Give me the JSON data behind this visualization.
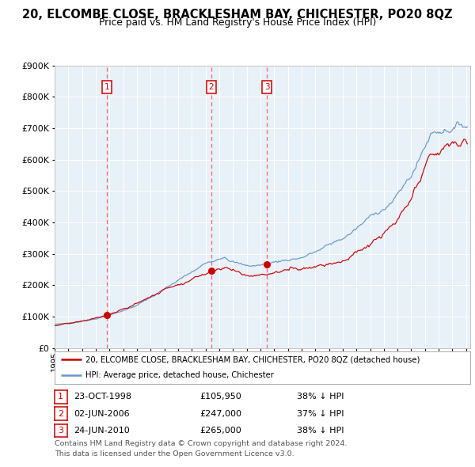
{
  "title": "20, ELCOMBE CLOSE, BRACKLESHAM BAY, CHICHESTER, PO20 8QZ",
  "subtitle": "Price paid vs. HM Land Registry's House Price Index (HPI)",
  "legend_line1": "20, ELCOMBE CLOSE, BRACKLESHAM BAY, CHICHESTER, PO20 8QZ (detached house)",
  "legend_line2": "HPI: Average price, detached house, Chichester",
  "footer_line1": "Contains HM Land Registry data © Crown copyright and database right 2024.",
  "footer_line2": "This data is licensed under the Open Government Licence v3.0.",
  "transactions": [
    {
      "num": 1,
      "date": "23-OCT-1998",
      "price": 105950,
      "pct": "38%",
      "dir": "↓"
    },
    {
      "num": 2,
      "date": "02-JUN-2006",
      "price": 247000,
      "pct": "37%",
      "dir": "↓"
    },
    {
      "num": 3,
      "date": "24-JUN-2010",
      "price": 265000,
      "pct": "38%",
      "dir": "↓"
    }
  ],
  "transaction_dates_decimal": [
    1998.81,
    2006.42,
    2010.48
  ],
  "transaction_prices": [
    105950,
    247000,
    265000
  ],
  "ylim": [
    0,
    900000
  ],
  "xlim_start": 1995.0,
  "xlim_end": 2025.3,
  "red_color": "#cc0000",
  "blue_color": "#6699cc",
  "plot_bg": "#e8f0f8",
  "grid_color": "#ffffff",
  "vline_color": "#ff5555",
  "box_color": "#cc0000",
  "title_fontsize": 10.5,
  "subtitle_fontsize": 9.0
}
